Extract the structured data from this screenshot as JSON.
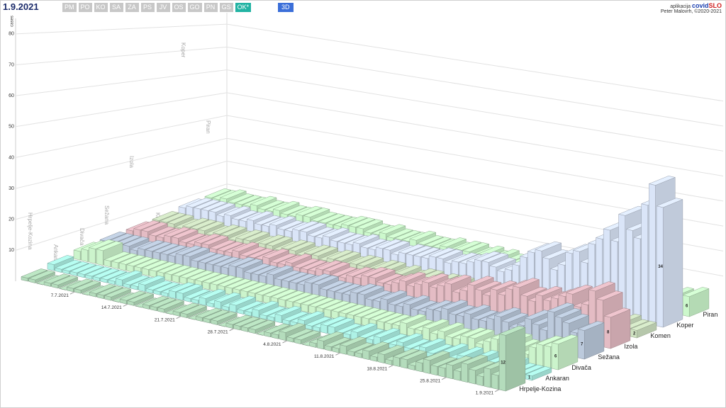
{
  "header": {
    "date": "1.9.2021",
    "buttons": [
      "PM",
      "PO",
      "KO",
      "SA",
      "ZA",
      "PS",
      "JV",
      "OS",
      "GO",
      "PN",
      "GS",
      "OK*"
    ],
    "mode": "3D",
    "app_prefix": "aplikacija",
    "app_name_1": "covid",
    "app_name_2": "SLO",
    "credit": "Peter Malovrh, ©2020-2021"
  },
  "chart_data": {
    "type": "bar3d",
    "y_label": "cases",
    "categories": [
      null,
      null,
      null,
      null,
      null,
      null,
      null,
      "7.7.2021",
      null,
      null,
      null,
      null,
      null,
      null,
      "14.7.2021",
      null,
      null,
      null,
      null,
      null,
      null,
      "21.7.2021",
      null,
      null,
      null,
      null,
      null,
      null,
      "28.7.2021",
      null,
      null,
      null,
      null,
      null,
      null,
      "4.8.2021",
      null,
      null,
      null,
      null,
      null,
      null,
      "11.8.2021",
      null,
      null,
      null,
      null,
      null,
      null,
      "18.8.2021",
      null,
      null,
      null,
      null,
      null,
      null,
      "25.8.2021",
      null,
      null,
      null,
      null,
      null,
      null,
      "1.9.2021"
    ],
    "series": [
      {
        "name": "Hrpelje-Kozina",
        "color": "#b4dcbc",
        "values": [
          1,
          1,
          0,
          1,
          1,
          0,
          1,
          1,
          0,
          1,
          1,
          1,
          0,
          1,
          1,
          0,
          1,
          1,
          1,
          0,
          1,
          1,
          0,
          1,
          1,
          1,
          0,
          1,
          1,
          1,
          1,
          0,
          1,
          1,
          2,
          1,
          1,
          0,
          1,
          2,
          1,
          1,
          2,
          1,
          1,
          2,
          1,
          2,
          1,
          2,
          2,
          1,
          2,
          3,
          2,
          2,
          3,
          2,
          4,
          3,
          2,
          4,
          3,
          12
        ]
      },
      {
        "name": "Ankaran",
        "color": "#aef2e6",
        "values": [
          2,
          1,
          1,
          1,
          1,
          1,
          1,
          1,
          1,
          2,
          1,
          1,
          2,
          1,
          1,
          1,
          2,
          2,
          1,
          1,
          2,
          1,
          2,
          1,
          2,
          1,
          1,
          2,
          1,
          1,
          2,
          1,
          1,
          2,
          1,
          1,
          2,
          2,
          1,
          1,
          2,
          1,
          1,
          2,
          1,
          1,
          2,
          1,
          1,
          2,
          1,
          1,
          2,
          1,
          2,
          1,
          2,
          1,
          2,
          1,
          2,
          1,
          1,
          1
        ]
      },
      {
        "name": "Divača",
        "color": "#ccf4cc",
        "values": [
          3,
          4,
          5,
          5,
          2,
          2,
          2,
          2,
          2,
          2,
          2,
          2,
          2,
          2,
          2,
          2,
          2,
          2,
          2,
          2,
          2,
          2,
          2,
          2,
          2,
          2,
          2,
          2,
          2,
          2,
          2,
          2,
          2,
          2,
          2,
          2,
          2,
          2,
          2,
          2,
          2,
          2,
          2,
          3,
          2,
          2,
          3,
          2,
          3,
          2,
          2,
          3,
          3,
          2,
          3,
          4,
          3,
          4,
          3,
          2,
          4,
          5,
          5,
          6
        ]
      },
      {
        "name": "Sežana",
        "color": "#bccadc",
        "values": [
          3,
          3,
          3,
          3,
          2,
          3,
          3,
          3,
          3,
          3,
          4,
          4,
          3,
          3,
          3,
          3,
          3,
          4,
          4,
          3,
          3,
          3,
          4,
          3,
          3,
          3,
          3,
          4,
          4,
          3,
          3,
          3,
          3,
          4,
          4,
          3,
          3,
          4,
          3,
          3,
          4,
          3,
          3,
          4,
          4,
          5,
          4,
          4,
          5,
          4,
          4,
          5,
          6,
          5,
          4,
          5,
          7,
          6,
          5,
          10,
          9,
          8,
          6,
          7
        ]
      },
      {
        "name": "Izola",
        "color": "#e4bcc4",
        "values": [
          3,
          4,
          4,
          3,
          3,
          4,
          4,
          3,
          3,
          4,
          4,
          3,
          3,
          3,
          4,
          3,
          3,
          3,
          4,
          3,
          3,
          4,
          3,
          3,
          3,
          4,
          4,
          3,
          3,
          4,
          4,
          5,
          5,
          4,
          4,
          5,
          6,
          5,
          6,
          7,
          6,
          7,
          8,
          6,
          7,
          9,
          8,
          7,
          9,
          8,
          10,
          11,
          9,
          8,
          10,
          9,
          10,
          11,
          12,
          9,
          10,
          14,
          12,
          8
        ]
      },
      {
        "name": "Komen",
        "color": "#cfe2c2",
        "values": [
          3,
          3,
          3,
          2,
          3,
          3,
          3,
          2,
          3,
          3,
          2,
          3,
          3,
          2,
          3,
          3,
          2,
          3,
          3,
          2,
          3,
          3,
          2,
          3,
          3,
          2,
          3,
          3,
          2,
          3,
          3,
          2,
          3,
          2,
          3,
          3,
          2,
          3,
          3,
          3,
          2,
          3,
          3,
          2,
          3,
          3,
          2,
          3,
          3,
          2,
          3,
          3,
          2,
          3,
          3,
          2,
          3,
          2,
          3,
          3,
          2,
          3,
          2,
          2
        ]
      },
      {
        "name": "Koper",
        "color": "#dae5f8",
        "values": [
          4,
          5,
          5,
          5,
          5,
          4,
          5,
          4,
          4,
          5,
          4,
          4,
          5,
          4,
          4,
          5,
          5,
          4,
          4,
          5,
          4,
          4,
          4,
          5,
          4,
          4,
          5,
          5,
          4,
          5,
          5,
          5,
          5,
          6,
          6,
          5,
          6,
          6,
          7,
          8,
          8,
          7,
          6,
          7,
          9,
          12,
          14,
          15,
          13,
          10,
          12,
          16,
          17,
          14,
          20,
          22,
          25,
          22,
          30,
          26,
          24,
          34,
          40,
          34
        ]
      },
      {
        "name": "Piran",
        "color": "#ccf8cc",
        "values": [
          4,
          4,
          5,
          4,
          4,
          4,
          5,
          4,
          4,
          5,
          4,
          4,
          5,
          5,
          4,
          4,
          4,
          4,
          5,
          5,
          5,
          4,
          4,
          5,
          4,
          4,
          4,
          5,
          4,
          4,
          4,
          5,
          4,
          5,
          5,
          4,
          5,
          4,
          5,
          4,
          4,
          4,
          5,
          4,
          4,
          5,
          4,
          4,
          4,
          5,
          4,
          5,
          4,
          4,
          5,
          4,
          5,
          4,
          4,
          5,
          4,
          5,
          4,
          6
        ]
      }
    ],
    "ylim": [
      0,
      85
    ],
    "yticks": [
      10,
      20,
      30,
      40,
      50,
      60,
      70,
      80
    ],
    "grid": true
  }
}
